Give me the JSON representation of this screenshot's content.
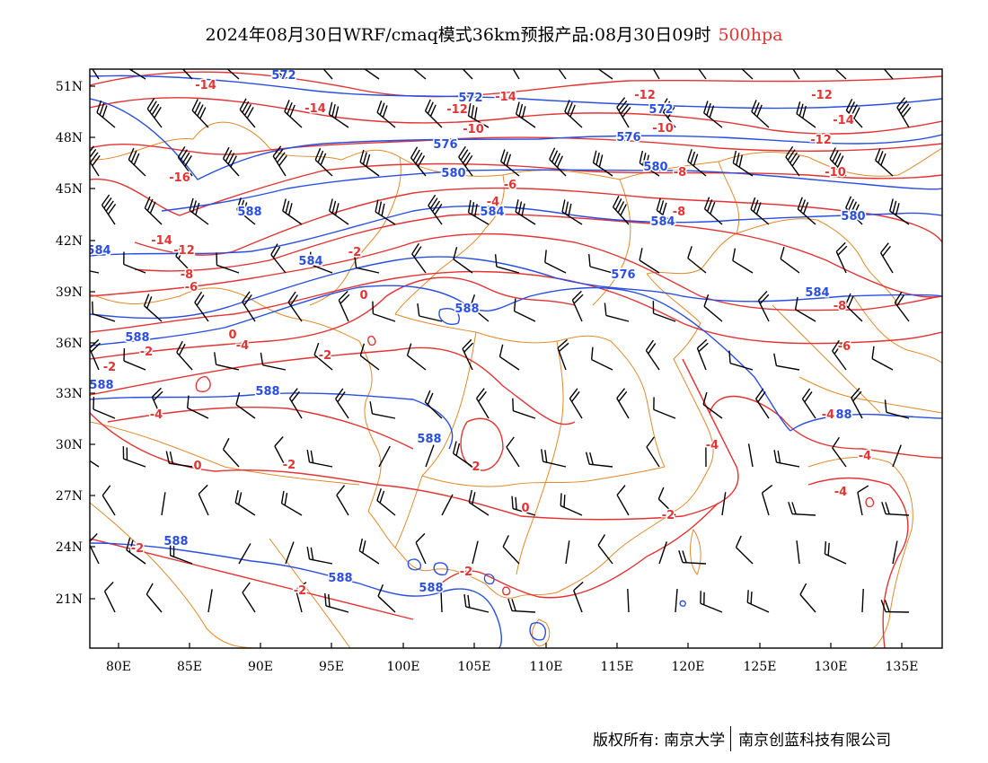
{
  "title": {
    "main": "2024年08月30日WRF/cmaq模式36km预报产品:08月30日09时",
    "level": "500hpa"
  },
  "colors": {
    "temperature": "#e33333",
    "height": "#2a4fe0",
    "boundary": "#e08a2a",
    "wind": "#000000",
    "level_text": "#e33333"
  },
  "axes": {
    "lat_labels": [
      "51N",
      "48N",
      "45N",
      "42N",
      "39N",
      "36N",
      "33N",
      "30N",
      "27N",
      "24N",
      "21N"
    ],
    "lon_labels": [
      "80E",
      "85E",
      "90E",
      "95E",
      "100E",
      "105E",
      "110E",
      "115E",
      "120E",
      "125E",
      "130E",
      "135E"
    ]
  },
  "legend_colors_note": "",
  "contours": {
    "height_labels": [
      "572",
      "572",
      "572",
      "576",
      "576",
      "580",
      "580",
      "584",
      "584",
      "584",
      "584",
      "588",
      "588",
      "588",
      "588",
      "588",
      "588",
      "588",
      "588",
      "576",
      "588",
      "584",
      "580",
      "588"
    ],
    "temperature_labels": [
      "-14",
      "-14",
      "-14",
      "-12",
      "-12",
      "-12",
      "-14",
      "-12",
      "-10",
      "-10",
      "-10",
      "-16",
      "-8",
      "-6",
      "-4",
      "-8",
      "-14",
      "-12",
      "-8",
      "-6",
      "-2",
      "0",
      "0",
      "-4",
      "-2",
      "-2",
      "-4",
      "-2",
      "-2",
      "-6",
      "-8",
      "-4",
      "0",
      "2",
      "-2",
      "0",
      "-2",
      "-2",
      "-2",
      "-4",
      "-4",
      "-4"
    ]
  },
  "footer": {
    "copyright": "版权所有: 南京大学",
    "company": "南京创蓝科技有限公司"
  }
}
